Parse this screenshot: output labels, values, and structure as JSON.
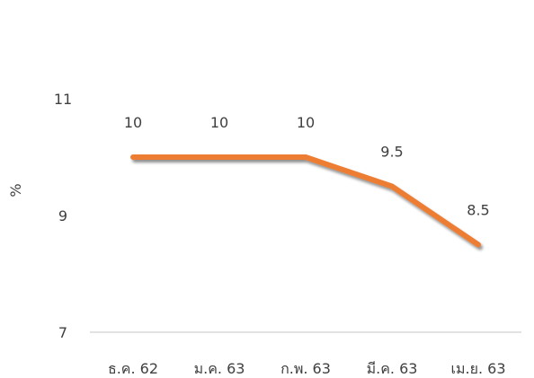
{
  "chart_data": {
    "type": "line",
    "title": "",
    "xlabel": "",
    "ylabel": "%",
    "categories": [
      "ธ.ค. 62",
      "ม.ค. 63",
      "ก.พ. 63",
      "มี.ค. 63",
      "เม.ย. 63"
    ],
    "series": [
      {
        "values": [
          10,
          10,
          10,
          9.5,
          8.5
        ],
        "data_labels": [
          "10",
          "10",
          "10",
          "9.5",
          "8.5"
        ]
      }
    ],
    "ylim": [
      7,
      11
    ],
    "yticks": [
      7,
      9,
      11
    ],
    "ytick_labels": [
      "7",
      "9",
      "11"
    ],
    "grid": false,
    "legend": "none",
    "line_color": "#ED7D31",
    "axis_color": "#D9D9D9",
    "text_color": "#404040"
  }
}
